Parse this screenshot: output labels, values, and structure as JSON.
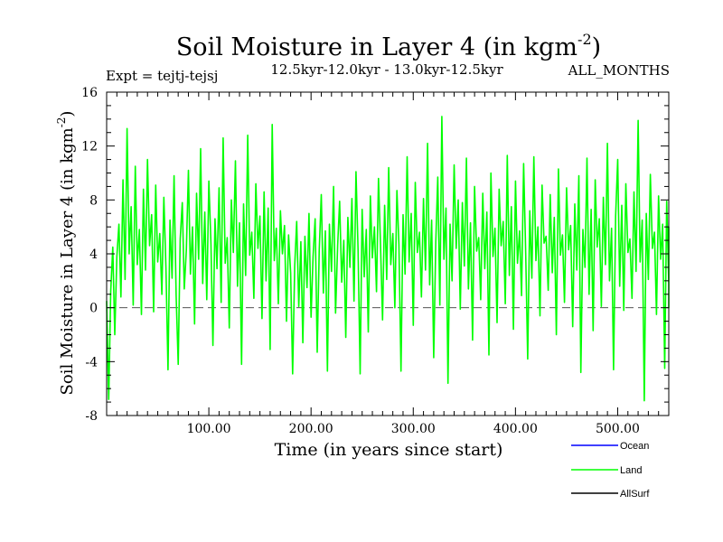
{
  "chart_data": {
    "type": "line",
    "title": "Soil Moisture in Layer 4 (in kgm",
    "title_sup": "-2",
    "title_close": ")",
    "subtitle": "12.5kyr-12.0kyr - 13.0kyr-12.5kyr",
    "expt_label": "Expt = tejtj-tejsj",
    "months_label": "ALL_MONTHS",
    "xlabel": "Time (in years since start)",
    "ylabel": "Soil Moisture in Layer 4 (in kgm",
    "ylabel_sup": "-2",
    "ylabel_close": ")",
    "xlim": [
      0,
      550
    ],
    "ylim": [
      -8,
      16
    ],
    "x_ticks": [
      100,
      200,
      300,
      400,
      500
    ],
    "x_tick_labels": [
      "100.00",
      "200.00",
      "300.00",
      "400.00",
      "500.00"
    ],
    "y_ticks": [
      -8,
      -4,
      0,
      4,
      8,
      12,
      16
    ],
    "y_tick_labels": [
      "-8",
      "-4",
      "0",
      "4",
      "8",
      "12",
      "16"
    ],
    "zero_line": 0,
    "series": [
      {
        "name": "Ocean",
        "color": "#0000ff",
        "values": []
      },
      {
        "name": "Land",
        "color": "#00ff00",
        "x_start": 0,
        "x_step": 2,
        "values": [
          0.5,
          -6.8,
          1.2,
          4.5,
          -2.0,
          3.8,
          6.2,
          0.8,
          9.5,
          2.1,
          13.3,
          4.0,
          7.5,
          0.2,
          10.5,
          3.2,
          5.8,
          -0.5,
          8.8,
          2.8,
          11.0,
          4.6,
          6.9,
          -0.3,
          9.1,
          3.4,
          5.5,
          1.0,
          8.2,
          3.0,
          -4.6,
          6.5,
          2.2,
          9.8,
          0.9,
          -4.2,
          5.1,
          7.8,
          1.4,
          4.3,
          10.2,
          2.5,
          6.0,
          -1.2,
          8.5,
          3.6,
          11.8,
          1.8,
          7.1,
          0.6,
          9.4,
          4.8,
          -2.8,
          6.6,
          2.9,
          8.9,
          0.4,
          12.6,
          3.3,
          5.2,
          -1.5,
          8.0,
          4.1,
          10.9,
          1.6,
          6.3,
          -4.2,
          7.7,
          2.4,
          12.8,
          3.9,
          5.6,
          0.7,
          9.2,
          4.4,
          6.8,
          -0.8,
          8.6,
          2.0,
          7.4,
          -3.1,
          13.6,
          3.5,
          5.9,
          0.3,
          7.2,
          4.0,
          6.1,
          -1.0,
          5.4,
          2.6,
          -4.9,
          3.1,
          6.4,
          0.1,
          4.9,
          -2.6,
          5.3,
          1.5,
          7.0,
          -0.7,
          3.8,
          6.6,
          -3.3,
          4.2,
          8.4,
          1.1,
          5.7,
          -4.7,
          6.2,
          2.7,
          9.0,
          -0.4,
          4.6,
          7.9,
          1.9,
          5.0,
          -2.2,
          6.7,
          3.0,
          8.1,
          0.5,
          10.1,
          4.3,
          -4.9,
          7.3,
          2.3,
          5.8,
          -1.8,
          8.3,
          3.7,
          6.0,
          1.2,
          9.6,
          4.5,
          -0.9,
          7.6,
          2.1,
          10.4,
          3.2,
          5.5,
          0.0,
          8.7,
          4.7,
          -4.7,
          6.9,
          2.5,
          11.2,
          3.4,
          7.0,
          -1.3,
          9.3,
          4.1,
          5.6,
          0.8,
          8.1,
          2.8,
          12.2,
          1.7,
          6.5,
          -3.7,
          4.9,
          9.7,
          0.2,
          14.2,
          3.6,
          7.4,
          -5.6,
          6.2,
          2.0,
          10.6,
          4.4,
          8.0,
          -0.1,
          7.8,
          3.1,
          11.1,
          1.4,
          6.3,
          -2.4,
          9.0,
          4.2,
          5.2,
          0.6,
          8.5,
          2.9,
          7.1,
          -3.5,
          10.0,
          3.8,
          5.9,
          -1.1,
          8.8,
          4.6,
          6.4,
          0.3,
          11.3,
          2.4,
          7.5,
          -1.6,
          9.4,
          3.3,
          5.7,
          0.9,
          10.7,
          4.0,
          -3.8,
          7.2,
          2.2,
          11.2,
          3.5,
          6.0,
          -0.6,
          9.1,
          4.8,
          5.3,
          1.3,
          8.4,
          2.6,
          6.7,
          -2.0,
          10.3,
          3.9,
          5.4,
          0.4,
          8.9,
          4.3,
          6.1,
          -1.4,
          7.7,
          2.8,
          9.8,
          -4.8,
          5.8,
          3.0,
          11.1,
          1.0,
          7.3,
          -1.7,
          9.5,
          4.5,
          6.6,
          0.1,
          8.2,
          3.2,
          12.2,
          2.0,
          5.9,
          -4.6,
          6.8,
          11.0,
          1.6,
          7.6,
          -0.2,
          9.2,
          4.1,
          5.1,
          0.7,
          8.6,
          2.7,
          13.9,
          3.4,
          6.5,
          -6.9,
          7.0,
          2.1,
          9.9,
          4.4,
          5.6,
          -0.5,
          8.3,
          3.6,
          6.2,
          -4.5,
          7.9,
          1.8,
          5.4,
          0.0,
          6.0,
          2.4
        ]
      },
      {
        "name": "AllSurf",
        "color": "#000000",
        "values": []
      }
    ]
  }
}
